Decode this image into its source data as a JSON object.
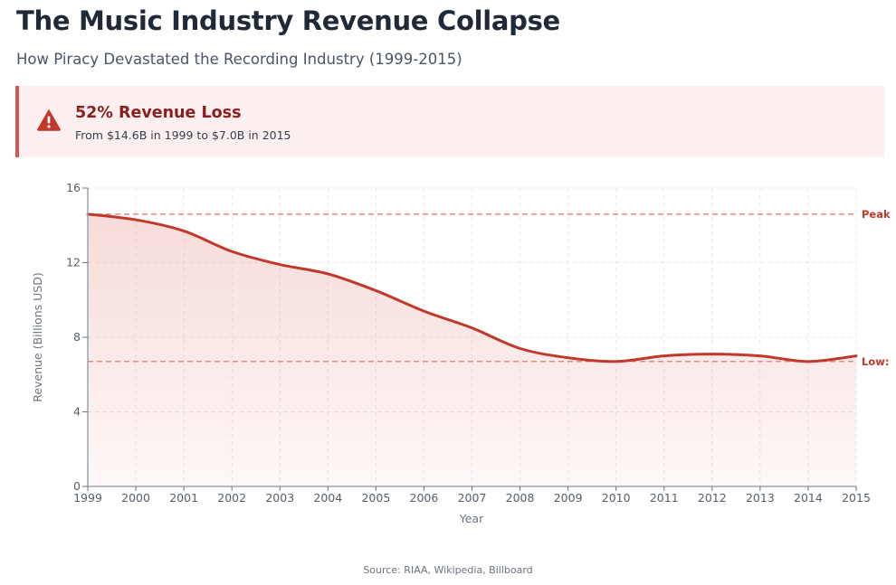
{
  "header": {
    "title": "The Music Industry Revenue Collapse",
    "subtitle": "How Piracy Devastated the Recording Industry (1999-2015)"
  },
  "alert": {
    "icon": "warning-triangle-icon",
    "title": "52% Revenue Loss",
    "text": "From $14.6B in 1999 to $7.0B in 2015",
    "accent_color": "#d9534f"
  },
  "chart_data": {
    "type": "area",
    "title": "",
    "xlabel": "Year",
    "ylabel": "Revenue (Billions USD)",
    "x": [
      1999,
      2000,
      2001,
      2002,
      2003,
      2004,
      2005,
      2006,
      2007,
      2008,
      2009,
      2010,
      2011,
      2012,
      2013,
      2014,
      2015
    ],
    "series": [
      {
        "name": "Revenue",
        "color": "#c0392b",
        "values": [
          14.6,
          14.3,
          13.7,
          12.6,
          11.9,
          11.4,
          10.5,
          9.4,
          8.5,
          7.4,
          6.9,
          6.7,
          7.0,
          7.1,
          7.0,
          6.7,
          7.0
        ]
      }
    ],
    "xlim": [
      1999,
      2015
    ],
    "ylim": [
      0,
      16
    ],
    "yticks": [
      0,
      4,
      8,
      12,
      16
    ],
    "xticks": [
      "1999",
      "2000",
      "2001",
      "2002",
      "2003",
      "2004",
      "2005",
      "2006",
      "2007",
      "2008",
      "2009",
      "2010",
      "2011",
      "2012",
      "2013",
      "2014",
      "2015"
    ],
    "grid": true,
    "reference_lines": [
      {
        "label": "Peak",
        "value": 14.6
      },
      {
        "label": "Low:",
        "value": 6.7
      }
    ]
  },
  "footer": {
    "source": "Source: RIAA, Wikipedia, Billboard"
  }
}
